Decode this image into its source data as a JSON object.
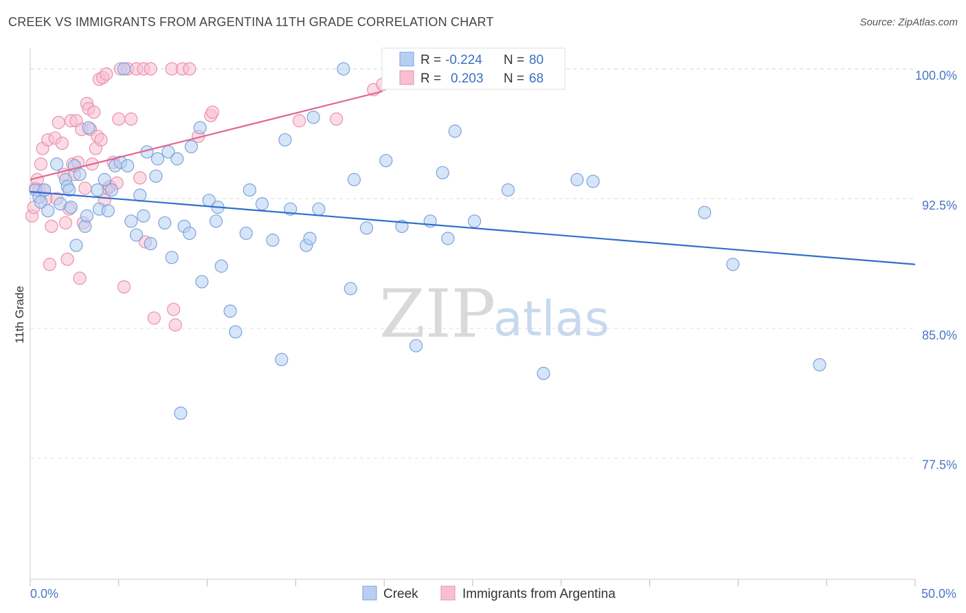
{
  "title": "CREEK VS IMMIGRANTS FROM ARGENTINA 11TH GRADE CORRELATION CHART",
  "source": "Source: ZipAtlas.com",
  "watermark": {
    "zip": "ZIP",
    "atlas": "atlas"
  },
  "colors": {
    "creek_fill": "#b7cff2",
    "creek_stroke": "#7aa3dc",
    "creek_line": "#2f6fcb",
    "arg_fill": "#f7c0cf",
    "arg_stroke": "#ea8fab",
    "arg_line": "#e06890",
    "grid": "#dddddd",
    "axis_text": "#4a76c4"
  },
  "stats": {
    "creek": {
      "r_label": "R =",
      "r_value": "-0.224",
      "n_label": "N =",
      "n_value": "80"
    },
    "argentina": {
      "r_label": "R =",
      "r_value": "0.203",
      "n_label": "N =",
      "n_value": "68"
    }
  },
  "chart_data": {
    "type": "scatter",
    "xlabel": "",
    "ylabel": "11th Grade",
    "xlim": [
      0,
      50
    ],
    "ylim": [
      70.5,
      101.2
    ],
    "x_ticks": [
      0,
      50
    ],
    "x_tick_labels": [
      "0.0%",
      "50.0%"
    ],
    "y_ticks": [
      77.5,
      85.0,
      92.5,
      100.0
    ],
    "y_tick_labels": [
      "77.5%",
      "85.0%",
      "92.5%",
      "100.0%"
    ],
    "grid": true,
    "legend_position": "bottom-center",
    "series": [
      {
        "name": "Creek",
        "trend": {
          "x": [
            0,
            50
          ],
          "y": [
            92.9,
            88.7
          ]
        },
        "points": [
          [
            0.3,
            93.0
          ],
          [
            0.5,
            92.6
          ],
          [
            0.6,
            92.3
          ],
          [
            0.8,
            93.0
          ],
          [
            1.0,
            91.8
          ],
          [
            1.5,
            94.5
          ],
          [
            1.7,
            92.2
          ],
          [
            2.0,
            93.6
          ],
          [
            2.1,
            93.2
          ],
          [
            2.2,
            93.0
          ],
          [
            2.3,
            92.0
          ],
          [
            2.5,
            94.4
          ],
          [
            2.6,
            89.8
          ],
          [
            2.8,
            93.9
          ],
          [
            3.1,
            90.9
          ],
          [
            3.2,
            91.5
          ],
          [
            3.3,
            96.6
          ],
          [
            3.8,
            93.0
          ],
          [
            3.9,
            91.9
          ],
          [
            4.2,
            93.6
          ],
          [
            4.4,
            91.8
          ],
          [
            4.6,
            93.0
          ],
          [
            4.8,
            94.4
          ],
          [
            5.1,
            94.6
          ],
          [
            5.3,
            100.0
          ],
          [
            5.5,
            94.4
          ],
          [
            5.7,
            91.2
          ],
          [
            6.0,
            90.4
          ],
          [
            6.2,
            92.7
          ],
          [
            6.4,
            91.5
          ],
          [
            6.6,
            95.2
          ],
          [
            6.8,
            89.9
          ],
          [
            7.1,
            93.8
          ],
          [
            7.2,
            94.8
          ],
          [
            7.6,
            91.1
          ],
          [
            7.8,
            95.2
          ],
          [
            8.0,
            89.1
          ],
          [
            8.3,
            94.8
          ],
          [
            8.5,
            80.1
          ],
          [
            8.7,
            90.9
          ],
          [
            9.0,
            90.5
          ],
          [
            9.1,
            95.5
          ],
          [
            9.6,
            96.6
          ],
          [
            9.7,
            87.7
          ],
          [
            10.1,
            92.4
          ],
          [
            10.5,
            91.2
          ],
          [
            10.6,
            92.0
          ],
          [
            10.8,
            88.6
          ],
          [
            11.3,
            86.0
          ],
          [
            11.6,
            84.8
          ],
          [
            12.2,
            90.5
          ],
          [
            12.4,
            93.0
          ],
          [
            13.1,
            92.2
          ],
          [
            13.7,
            90.1
          ],
          [
            14.2,
            83.2
          ],
          [
            14.4,
            95.9
          ],
          [
            14.7,
            91.9
          ],
          [
            15.6,
            89.8
          ],
          [
            15.8,
            90.2
          ],
          [
            16.0,
            97.2
          ],
          [
            16.3,
            91.9
          ],
          [
            17.7,
            100.0
          ],
          [
            18.1,
            87.3
          ],
          [
            18.3,
            93.6
          ],
          [
            19.0,
            90.8
          ],
          [
            20.1,
            94.7
          ],
          [
            21.0,
            90.9
          ],
          [
            21.8,
            84.0
          ],
          [
            22.6,
            91.2
          ],
          [
            23.3,
            94.0
          ],
          [
            23.6,
            90.2
          ],
          [
            24.0,
            96.4
          ],
          [
            25.1,
            91.2
          ],
          [
            27.0,
            93.0
          ],
          [
            29.0,
            82.4
          ],
          [
            30.9,
            93.6
          ],
          [
            31.8,
            93.5
          ],
          [
            38.1,
            91.7
          ],
          [
            39.7,
            88.7
          ],
          [
            44.6,
            82.9
          ]
        ]
      },
      {
        "name": "Immigrants from Argentina",
        "trend": {
          "x": [
            0,
            19.9
          ],
          "y": [
            93.6,
            98.7
          ]
        },
        "points": [
          [
            0.1,
            91.5
          ],
          [
            0.2,
            92.0
          ],
          [
            0.3,
            93.1
          ],
          [
            0.4,
            93.6
          ],
          [
            0.5,
            93.0
          ],
          [
            0.6,
            94.5
          ],
          [
            0.7,
            95.4
          ],
          [
            0.8,
            93.0
          ],
          [
            0.9,
            92.5
          ],
          [
            1.0,
            95.9
          ],
          [
            1.1,
            88.7
          ],
          [
            1.2,
            90.9
          ],
          [
            1.4,
            96.0
          ],
          [
            1.5,
            92.5
          ],
          [
            1.6,
            96.9
          ],
          [
            1.8,
            95.7
          ],
          [
            1.9,
            93.9
          ],
          [
            2.0,
            91.1
          ],
          [
            2.1,
            89.0
          ],
          [
            2.2,
            91.9
          ],
          [
            2.3,
            97.0
          ],
          [
            2.4,
            94.5
          ],
          [
            2.5,
            93.9
          ],
          [
            2.6,
            97.0
          ],
          [
            2.7,
            94.6
          ],
          [
            2.8,
            87.9
          ],
          [
            2.9,
            96.5
          ],
          [
            3.0,
            91.1
          ],
          [
            3.1,
            93.1
          ],
          [
            3.2,
            98.0
          ],
          [
            3.3,
            97.7
          ],
          [
            3.4,
            96.5
          ],
          [
            3.5,
            94.5
          ],
          [
            3.6,
            97.5
          ],
          [
            3.7,
            95.4
          ],
          [
            3.8,
            96.1
          ],
          [
            3.9,
            99.4
          ],
          [
            4.0,
            95.9
          ],
          [
            4.1,
            99.5
          ],
          [
            4.2,
            92.4
          ],
          [
            4.3,
            99.7
          ],
          [
            4.4,
            93.1
          ],
          [
            4.5,
            93.2
          ],
          [
            4.7,
            94.6
          ],
          [
            4.9,
            93.4
          ],
          [
            5.0,
            97.1
          ],
          [
            5.1,
            100.0
          ],
          [
            5.3,
            87.4
          ],
          [
            5.5,
            100.0
          ],
          [
            5.7,
            97.1
          ],
          [
            6.0,
            100.0
          ],
          [
            6.2,
            93.7
          ],
          [
            6.4,
            100.0
          ],
          [
            6.5,
            90.0
          ],
          [
            6.8,
            100.0
          ],
          [
            7.0,
            85.6
          ],
          [
            8.0,
            100.0
          ],
          [
            8.1,
            86.1
          ],
          [
            8.2,
            85.2
          ],
          [
            8.6,
            100.0
          ],
          [
            9.0,
            100.0
          ],
          [
            9.5,
            96.1
          ],
          [
            10.2,
            97.3
          ],
          [
            10.3,
            97.5
          ],
          [
            15.2,
            97.0
          ],
          [
            17.3,
            97.1
          ],
          [
            19.4,
            98.8
          ],
          [
            19.9,
            99.1
          ]
        ]
      }
    ]
  },
  "legend": {
    "creek_label": "Creek",
    "argentina_label": "Immigrants from Argentina"
  }
}
